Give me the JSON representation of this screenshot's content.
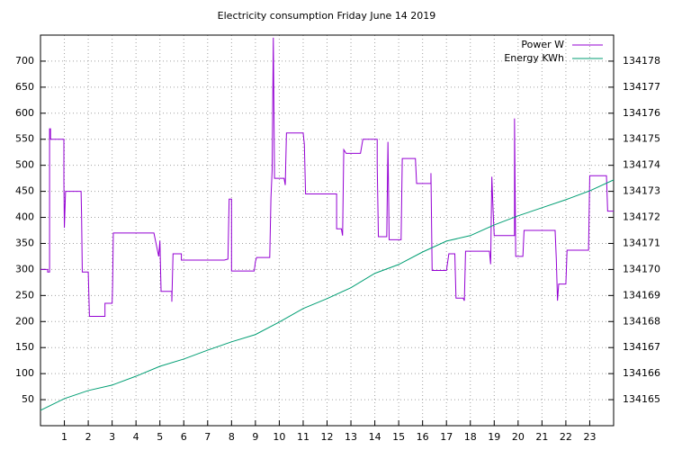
{
  "chart_data": {
    "type": "line",
    "title": "Electricity consumption Friday June 14 2019",
    "xlim": [
      0,
      24
    ],
    "xticks": [
      1,
      2,
      3,
      4,
      5,
      6,
      7,
      8,
      9,
      10,
      11,
      12,
      13,
      14,
      15,
      16,
      17,
      18,
      19,
      20,
      21,
      22,
      23
    ],
    "ylim": [
      0,
      750
    ],
    "yticks": [
      50,
      100,
      150,
      200,
      250,
      300,
      350,
      400,
      450,
      500,
      550,
      600,
      650,
      700
    ],
    "y2lim": [
      134164,
      134179
    ],
    "y2ticks": [
      134165,
      134166,
      134167,
      134168,
      134169,
      134170,
      134171,
      134172,
      134173,
      134174,
      134175,
      134176,
      134177,
      134178
    ],
    "grid": true,
    "legend": "top-right",
    "series": [
      {
        "name": "Power W",
        "color": "#9400d3",
        "x": [
          0,
          0.3,
          0.3,
          0.38,
          0.38,
          0.42,
          0.42,
          0.98,
          0.98,
          1.0,
          1.05,
          1.7,
          1.72,
          1.75,
          2.0,
          2.05,
          2.7,
          2.7,
          3.0,
          3.02,
          3.05,
          4.7,
          4.75,
          4.95,
          5.0,
          5.05,
          5.5,
          5.5,
          5.55,
          5.9,
          5.9,
          7.7,
          7.85,
          7.9,
          8.0,
          8.0,
          8.95,
          9.0,
          9.05,
          9.6,
          9.65,
          9.7,
          9.75,
          9.8,
          10.2,
          10.25,
          10.3,
          11.0,
          11.05,
          11.1,
          12.4,
          12.4,
          12.6,
          12.65,
          12.7,
          12.8,
          13.4,
          13.5,
          14.1,
          14.1,
          14.15,
          14.5,
          14.55,
          14.6,
          15.1,
          15.15,
          15.7,
          15.75,
          16.35,
          16.35,
          16.4,
          17.0,
          17.1,
          17.35,
          17.4,
          17.7,
          17.75,
          17.8,
          18.8,
          18.85,
          18.9,
          18.95,
          19.0,
          19.85,
          19.85,
          19.9,
          20.2,
          20.25,
          21.55,
          21.6,
          21.65,
          21.7,
          22.0,
          22.05,
          22.95,
          23.0,
          23.7,
          23.75,
          24
        ],
        "values": [
          300,
          300,
          295,
          295,
          570,
          570,
          550,
          550,
          470,
          380,
          450,
          450,
          405,
          295,
          295,
          210,
          210,
          235,
          235,
          270,
          370,
          370,
          370,
          325,
          355,
          258,
          258,
          238,
          330,
          330,
          318,
          318,
          320,
          435,
          435,
          297,
          297,
          315,
          323,
          323,
          437,
          490,
          745,
          475,
          475,
          462,
          562,
          562,
          540,
          445,
          445,
          378,
          378,
          365,
          530,
          523,
          523,
          550,
          550,
          500,
          363,
          363,
          545,
          357,
          357,
          513,
          513,
          465,
          465,
          485,
          298,
          298,
          330,
          330,
          245,
          245,
          240,
          335,
          335,
          310,
          478,
          417,
          365,
          365,
          590,
          325,
          325,
          375,
          375,
          320,
          240,
          272,
          272,
          337,
          337,
          480,
          480,
          412,
          412
        ]
      },
      {
        "name": "Energy KWh",
        "color": "#009e73",
        "axis": "y2",
        "x": [
          0,
          1,
          2,
          3,
          4,
          5,
          6,
          7,
          8,
          9,
          10,
          11,
          12,
          13,
          14,
          15,
          16,
          17,
          18,
          19,
          20,
          21,
          22,
          23,
          24
        ],
        "values": [
          134164.59,
          134165.04,
          134165.35,
          134165.56,
          134165.9,
          134166.28,
          134166.56,
          134166.9,
          134167.22,
          134167.5,
          134167.98,
          134168.5,
          134168.88,
          134169.3,
          134169.85,
          134170.19,
          134170.67,
          134171.09,
          134171.3,
          134171.71,
          134172.06,
          134172.37,
          134172.68,
          134173.02,
          134173.44
        ]
      }
    ]
  }
}
